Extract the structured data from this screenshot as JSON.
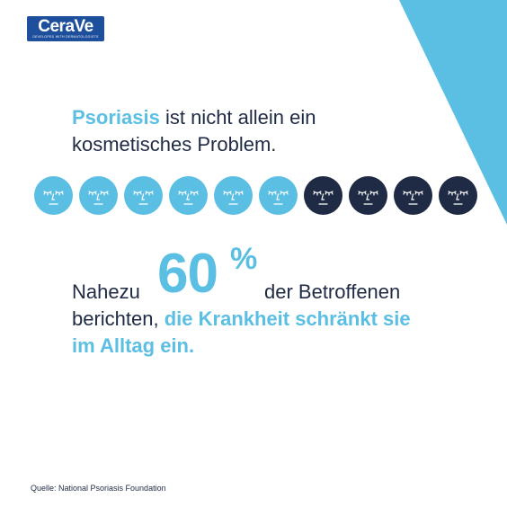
{
  "brand": {
    "name": "CeraVe",
    "tagline": "DEVELOPED WITH DERMATOLOGISTS",
    "colors": {
      "accent": "#5bbfe4",
      "navy": "#1f2a44",
      "logo": "#1e4f9c"
    }
  },
  "headline": {
    "highlight": "Psoriasis",
    "line1_rest": " ist nicht allein ein",
    "line2": "kosmetisches Problem."
  },
  "faces": {
    "light_count": 6,
    "dark_count": 4,
    "icon": "face-eyes-closed-icon"
  },
  "stat": {
    "prefix": "Nahezu",
    "number": "60",
    "percent_sign": "%",
    "suffix": "der Betroffenen"
  },
  "body": {
    "plain": "berichten, ",
    "highlight_line1": "die Krankheit schränkt sie",
    "highlight_line2": "im Alltag ein."
  },
  "source": "Quelle: National Psoriasis Foundation"
}
